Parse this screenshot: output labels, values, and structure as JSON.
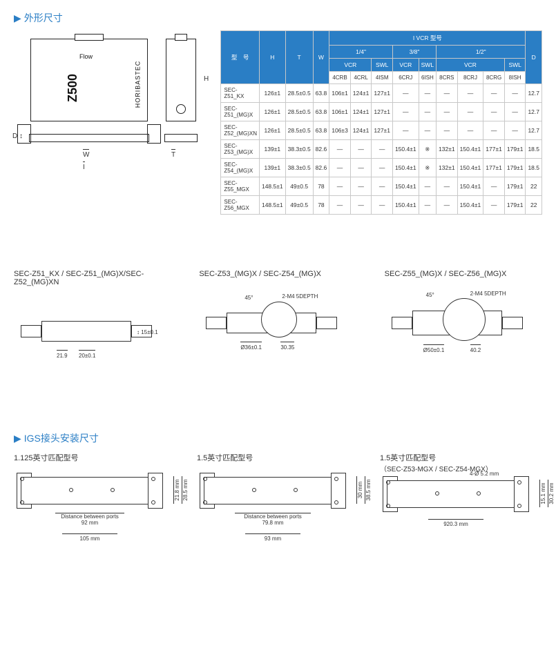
{
  "sections": {
    "outline": "外形尺寸",
    "igs": "IGS接头安装尺寸"
  },
  "outline_labels": {
    "z500": "Z500",
    "horibastec": "HORIBASTEC",
    "flow": "Flow",
    "W": "W",
    "I": "I",
    "D": "D",
    "H": "H",
    "T": "T"
  },
  "table": {
    "header": {
      "model": "型　号",
      "H": "H",
      "T": "T",
      "W": "W",
      "ivcr": "I VCR 型号",
      "D": "D",
      "q14": "1/4\"",
      "q38": "3/8\"",
      "q12": "1/2\"",
      "VCR": "VCR",
      "SWL": "SWL",
      "s4CRB": "4CRB",
      "s4CRL": "4CRL",
      "s4ISM": "4ISM",
      "s6CRJ": "6CRJ",
      "s6ISH": "6ISH",
      "s8CRS": "8CRS",
      "s8CRJ": "8CRJ",
      "s8CRG": "8CRG",
      "s8ISH": "8ISH"
    },
    "rows": [
      {
        "m": "SEC-Z51_KX",
        "H": "126±1",
        "T": "28.5±0.5",
        "W": "63.8",
        "c": [
          "106±1",
          "124±1",
          "127±1",
          "—",
          "—",
          "—",
          "—",
          "—",
          "—"
        ],
        "D": "12.7"
      },
      {
        "m": "SEC-Z51_(MG)X",
        "H": "126±1",
        "T": "28.5±0.5",
        "W": "63.8",
        "c": [
          "106±1",
          "124±1",
          "127±1",
          "—",
          "—",
          "—",
          "—",
          "—",
          "—"
        ],
        "D": "12.7"
      },
      {
        "m": "SEC-Z52_(MG)XN",
        "H": "126±1",
        "T": "28.5±0.5",
        "W": "63.8",
        "c": [
          "106±3",
          "124±1",
          "127±1",
          "—",
          "—",
          "—",
          "—",
          "—",
          "—"
        ],
        "D": "12.7"
      },
      {
        "m": "SEC-Z53_(MG)X",
        "H": "139±1",
        "T": "38.3±0.5",
        "W": "82.6",
        "c": [
          "—",
          "—",
          "—",
          "150.4±1",
          "※",
          "132±1",
          "150.4±1",
          "177±1",
          "179±1"
        ],
        "D": "18.5"
      },
      {
        "m": "SEC-Z54_(MG)X",
        "H": "139±1",
        "T": "38.3±0.5",
        "W": "82.6",
        "c": [
          "—",
          "—",
          "—",
          "150.4±1",
          "※",
          "132±1",
          "150.4±1",
          "177±1",
          "179±1"
        ],
        "D": "18.5"
      },
      {
        "m": "SEC-Z55_MGX",
        "H": "148.5±1",
        "T": "49±0.5",
        "W": "78",
        "c": [
          "—",
          "—",
          "—",
          "150.4±1",
          "—",
          "—",
          "150.4±1",
          "—",
          "179±1"
        ],
        "D": "22"
      },
      {
        "m": "SEC-Z56_MGX",
        "H": "148.5±1",
        "T": "49±0.5",
        "W": "78",
        "c": [
          "—",
          "—",
          "—",
          "150.4±1",
          "—",
          "—",
          "150.4±1",
          "—",
          "179±1"
        ],
        "D": "22"
      }
    ]
  },
  "mid": {
    "titles": [
      "SEC-Z51_KX / SEC-Z51_(MG)X/SEC-Z52_(MG)XN",
      "SEC-Z53_(MG)X / SEC-Z54_(MG)X",
      "SEC-Z55_(MG)X / SEC-Z56_(MG)X"
    ],
    "d1": {
      "v1": "15±0.1",
      "v2": "21.9",
      "v3": "20±0.1"
    },
    "d2": {
      "a": "45°",
      "holes": "2-M4 5DEPTH",
      "dia": "Ø36±0.1",
      "p": "30.35"
    },
    "d3": {
      "a": "45°",
      "holes": "2-M4 5DEPTH",
      "dia": "Ø50±0.1",
      "p": "40.2"
    }
  },
  "igs": {
    "cols": [
      {
        "title": "1.125英寸匹配型号",
        "sub": "",
        "dbp": "Distance between ports",
        "p": "92 mm",
        "w": "105 mm",
        "h1": "21.8 mm",
        "h2": "28.5 mm"
      },
      {
        "title": "1.5英寸匹配型号",
        "sub": "",
        "dbp": "Distance between ports",
        "p": "79.8 mm",
        "w": "93 mm",
        "h1": "30 mm",
        "h2": "38.5 mm"
      },
      {
        "title": "1.5英寸匹配型号",
        "sub": "（SEC-Z53-MGX / SEC-Z54-MGX）",
        "holes": "4-Ø 5.2 mm",
        "w": "920.3 mm",
        "h1": "15.1 mm",
        "h2": "30.2 mm"
      }
    ]
  },
  "colors": {
    "accent": "#2a7ec5",
    "border": "#c8c8c8",
    "text": "#333333",
    "bg": "#ffffff"
  }
}
